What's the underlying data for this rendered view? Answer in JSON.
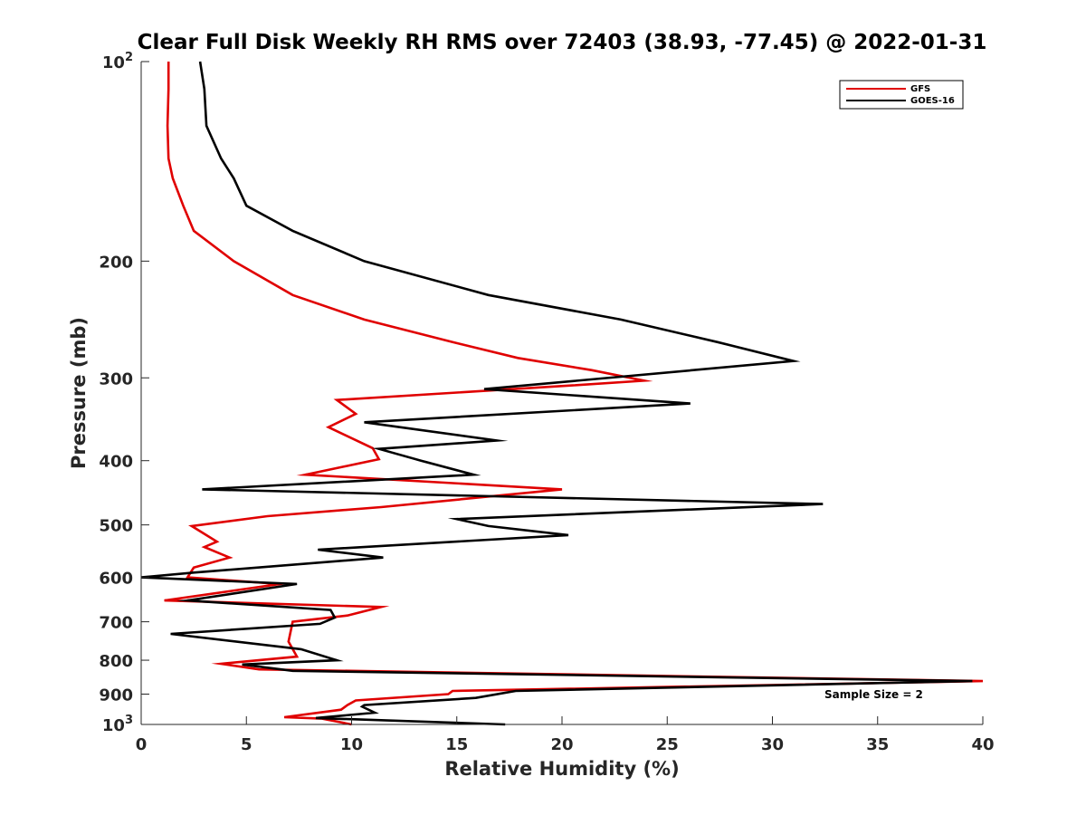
{
  "chart_data": {
    "type": "line",
    "title": "Clear Full Disk Weekly RH RMS over 72403 (38.93, -77.45) @ 2022-01-31",
    "xlabel": "Relative Humidity (%)",
    "ylabel": "Pressure (mb)",
    "xlim": [
      0,
      40
    ],
    "ylim": [
      100,
      1000
    ],
    "y_scale": "log",
    "y_reversed": true,
    "grid": false,
    "legend_position": "top-right",
    "x_ticks": [
      0,
      5,
      10,
      15,
      20,
      25,
      30,
      35,
      40
    ],
    "x_tick_labels": [
      "0",
      "5",
      "10",
      "15",
      "20",
      "25",
      "30",
      "35",
      "40"
    ],
    "y_ticks": [
      {
        "value": 100,
        "base": "10",
        "exp": "2"
      },
      {
        "value": 200,
        "label": "200"
      },
      {
        "value": 300,
        "label": "300"
      },
      {
        "value": 400,
        "label": "400"
      },
      {
        "value": 500,
        "label": "500"
      },
      {
        "value": 600,
        "label": "600"
      },
      {
        "value": 700,
        "label": "700"
      },
      {
        "value": 800,
        "label": "800"
      },
      {
        "value": 900,
        "label": "900"
      },
      {
        "value": 1000,
        "base": "10",
        "exp": "3"
      }
    ],
    "annotation": "Sample Size = 2",
    "series": [
      {
        "name": "GFS",
        "color": "#e00000",
        "points": [
          [
            1.3,
            100
          ],
          [
            1.3,
            110
          ],
          [
            1.25,
            125
          ],
          [
            1.3,
            140
          ],
          [
            1.5,
            150
          ],
          [
            2.0,
            165
          ],
          [
            2.5,
            180
          ],
          [
            4.4,
            200
          ],
          [
            7.2,
            225
          ],
          [
            10.6,
            245
          ],
          [
            14.8,
            265
          ],
          [
            17.9,
            280
          ],
          [
            21.4,
            292
          ],
          [
            23.9,
            303
          ],
          [
            20.5,
            308
          ],
          [
            9.3,
            324
          ],
          [
            10.2,
            340
          ],
          [
            8.9,
            356
          ],
          [
            11.0,
            383
          ],
          [
            11.3,
            398
          ],
          [
            7.8,
            420
          ],
          [
            20.0,
            442
          ],
          [
            11.4,
            470
          ],
          [
            6.0,
            485
          ],
          [
            2.4,
            502
          ],
          [
            3.6,
            530
          ],
          [
            3.0,
            540
          ],
          [
            4.2,
            560
          ],
          [
            2.5,
            580
          ],
          [
            2.2,
            600
          ],
          [
            6.6,
            614
          ],
          [
            1.1,
            650
          ],
          [
            11.4,
            665
          ],
          [
            9.8,
            685
          ],
          [
            7.2,
            700
          ],
          [
            7.0,
            750
          ],
          [
            7.4,
            790
          ],
          [
            3.8,
            810
          ],
          [
            5.6,
            826
          ],
          [
            40.0,
            860
          ],
          [
            14.8,
            890
          ],
          [
            14.6,
            900
          ],
          [
            10.2,
            920
          ],
          [
            9.8,
            935
          ],
          [
            9.5,
            950
          ],
          [
            6.8,
            975
          ],
          [
            8.6,
            980
          ],
          [
            10.0,
            1000
          ]
        ]
      },
      {
        "name": "GOES-16",
        "color": "#000000",
        "points": [
          [
            2.8,
            100
          ],
          [
            3.0,
            110
          ],
          [
            3.1,
            125
          ],
          [
            3.8,
            140
          ],
          [
            4.4,
            150
          ],
          [
            5.0,
            165
          ],
          [
            7.2,
            180
          ],
          [
            10.6,
            200
          ],
          [
            16.5,
            225
          ],
          [
            22.8,
            245
          ],
          [
            27.4,
            265
          ],
          [
            31.0,
            283
          ],
          [
            16.3,
            312
          ],
          [
            26.1,
            328
          ],
          [
            10.6,
            350
          ],
          [
            16.9,
            373
          ],
          [
            11.3,
            384
          ],
          [
            13.3,
            400
          ],
          [
            15.8,
            420
          ],
          [
            2.9,
            442
          ],
          [
            32.4,
            465
          ],
          [
            15.0,
            490
          ],
          [
            16.5,
            502
          ],
          [
            20.3,
            518
          ],
          [
            8.4,
            545
          ],
          [
            11.5,
            560
          ],
          [
            2.5,
            590
          ],
          [
            0.0,
            600
          ],
          [
            7.4,
            614
          ],
          [
            2.2,
            650
          ],
          [
            9.0,
            672
          ],
          [
            9.2,
            690
          ],
          [
            8.5,
            705
          ],
          [
            1.4,
            730
          ],
          [
            7.6,
            770
          ],
          [
            9.3,
            800
          ],
          [
            4.8,
            812
          ],
          [
            7.2,
            830
          ],
          [
            39.5,
            860
          ],
          [
            17.8,
            890
          ],
          [
            15.9,
            912
          ],
          [
            10.6,
            935
          ],
          [
            10.5,
            940
          ],
          [
            11.1,
            960
          ],
          [
            8.3,
            978
          ],
          [
            17.3,
            1000
          ]
        ]
      }
    ]
  }
}
